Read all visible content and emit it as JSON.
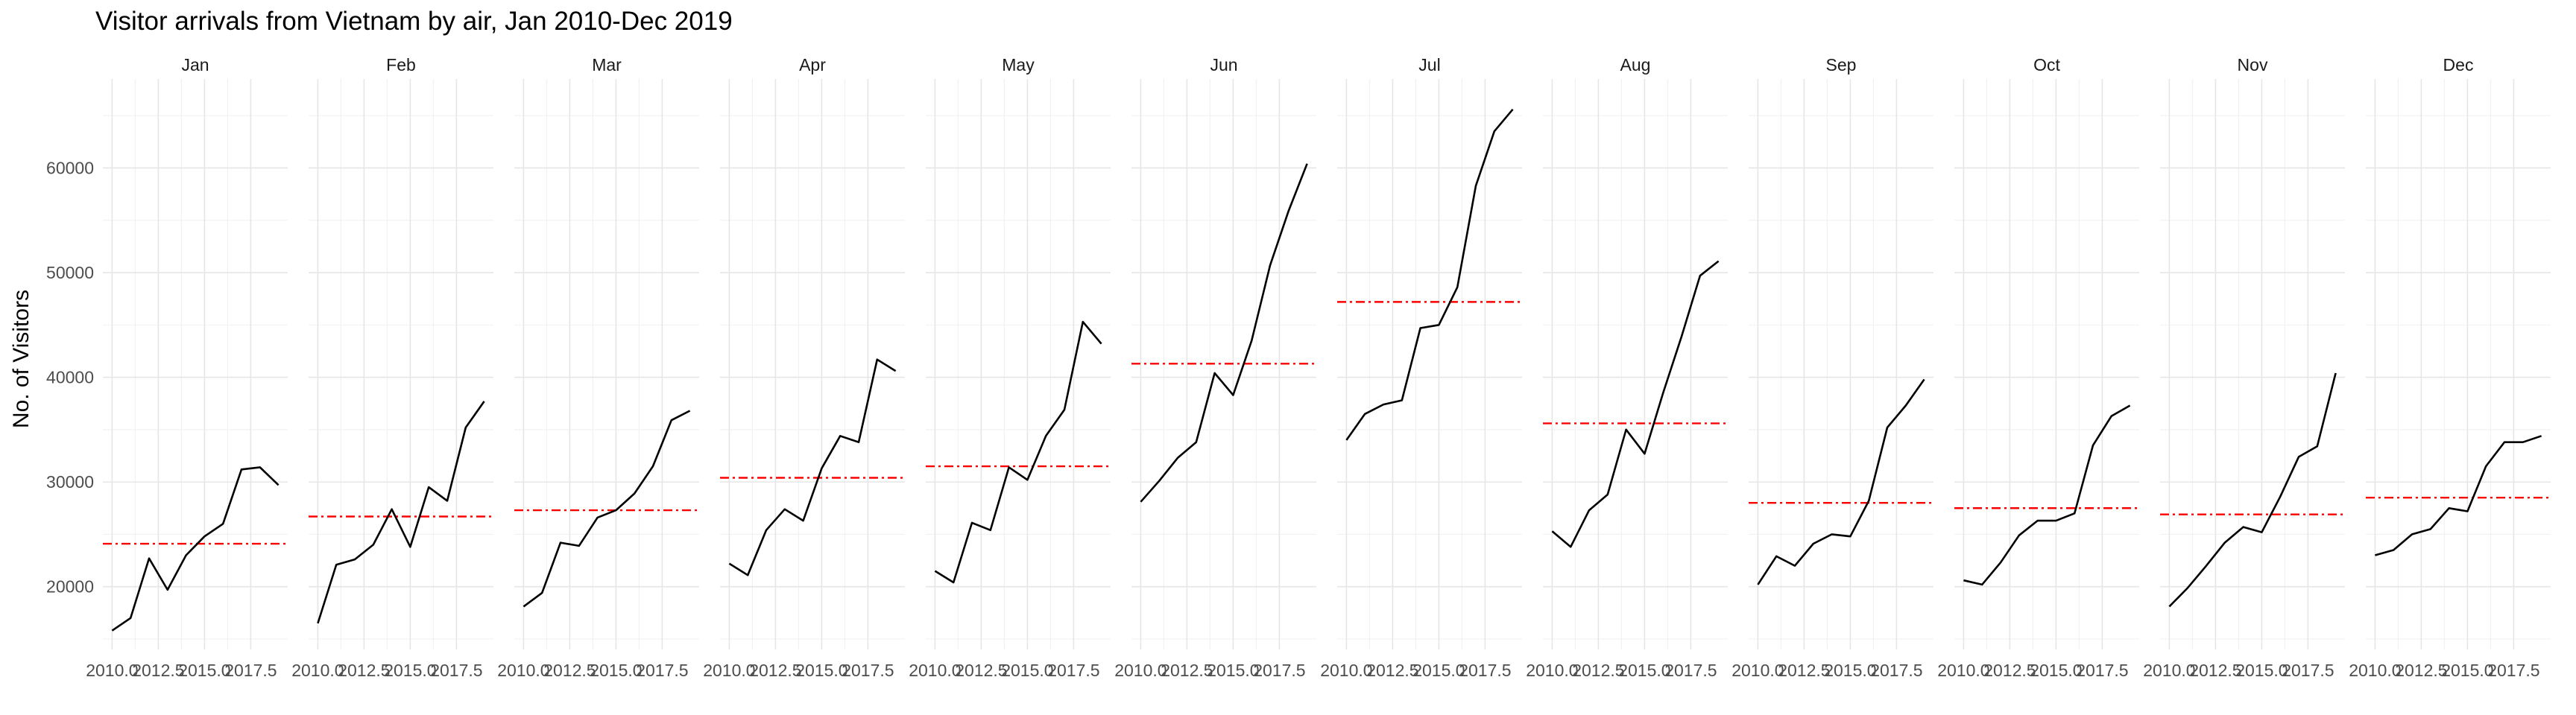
{
  "chart_data": {
    "type": "line",
    "title": "Visitor arrivals from Vietnam by air, Jan 2010-Dec 2019",
    "xlabel": "",
    "ylabel": "No. of Visitors",
    "grid": true,
    "x": [
      2010,
      2011,
      2012,
      2013,
      2014,
      2015,
      2016,
      2017,
      2018,
      2019
    ],
    "xlim": [
      2009.5,
      2019.5
    ],
    "ylim": [
      14000,
      68500
    ],
    "x_ticks": [
      2010.0,
      2012.5,
      2015.0,
      2017.5
    ],
    "x_tick_labels": [
      "2010.0",
      "2012.5",
      "2015.0",
      "2017.5"
    ],
    "y_ticks": [
      20000,
      30000,
      40000,
      50000,
      60000
    ],
    "y_tick_labels": [
      "20000",
      "30000",
      "40000",
      "50000",
      "60000"
    ],
    "line_color": "#000000",
    "mean_line_color": "#ff0000",
    "facets": [
      {
        "label": "Jan",
        "values": [
          15800,
          17000,
          22700,
          19700,
          23000,
          24800,
          26000,
          31200,
          31400,
          29700
        ],
        "mean": 24100
      },
      {
        "label": "Feb",
        "values": [
          16500,
          22100,
          22600,
          24000,
          27400,
          23800,
          29500,
          28200,
          35200,
          37700
        ],
        "mean": 26700
      },
      {
        "label": "Mar",
        "values": [
          18100,
          19400,
          24200,
          23900,
          26600,
          27300,
          28900,
          31500,
          35900,
          36800
        ],
        "mean": 27300
      },
      {
        "label": "Apr",
        "values": [
          22200,
          21100,
          25400,
          27400,
          26300,
          31300,
          34400,
          33800,
          41700,
          40600
        ],
        "mean": 30400
      },
      {
        "label": "May",
        "values": [
          21500,
          20400,
          26100,
          25400,
          31400,
          30200,
          34400,
          36900,
          45300,
          43200
        ],
        "mean": 31500
      },
      {
        "label": "Jun",
        "values": [
          28100,
          30100,
          32300,
          33800,
          40400,
          38300,
          43500,
          50700,
          55900,
          60400
        ],
        "mean": 41300
      },
      {
        "label": "Jul",
        "values": [
          34000,
          36500,
          37400,
          37800,
          44700,
          45000,
          48600,
          58300,
          63500,
          65600
        ],
        "mean": 47200
      },
      {
        "label": "Aug",
        "values": [
          25300,
          23800,
          27300,
          28800,
          35000,
          32700,
          38500,
          43900,
          49700,
          51100
        ],
        "mean": 35600
      },
      {
        "label": "Sep",
        "values": [
          20200,
          22900,
          22000,
          24100,
          25000,
          24800,
          28200,
          35200,
          37300,
          39800
        ],
        "mean": 28000
      },
      {
        "label": "Oct",
        "values": [
          20600,
          20200,
          22300,
          24900,
          26300,
          26300,
          27000,
          33500,
          36300,
          37300
        ],
        "mean": 27500
      },
      {
        "label": "Nov",
        "values": [
          18100,
          19900,
          22000,
          24200,
          25700,
          25200,
          28600,
          32400,
          33400,
          40400
        ],
        "mean": 26900
      },
      {
        "label": "Dec",
        "values": [
          23000,
          23500,
          25000,
          25500,
          27500,
          27200,
          31500,
          33800,
          33800,
          34400
        ],
        "mean": 28500
      }
    ]
  }
}
